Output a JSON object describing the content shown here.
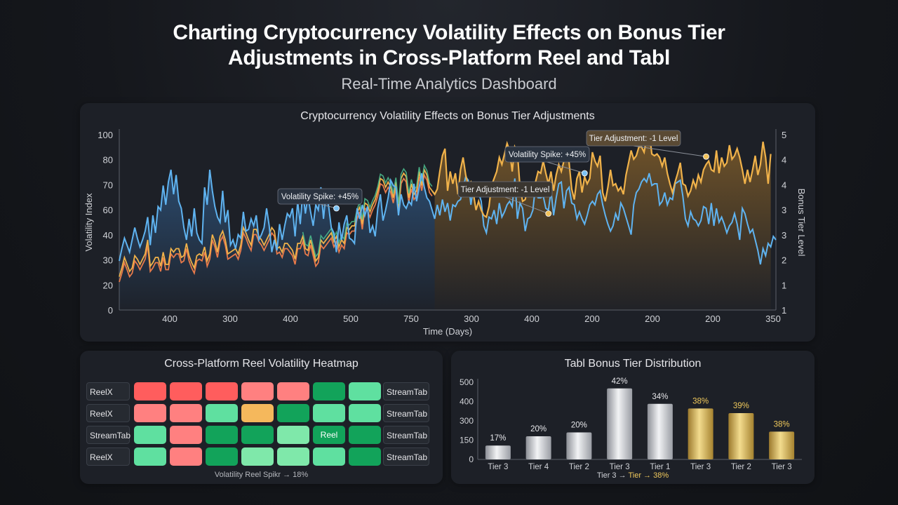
{
  "header": {
    "title_line1": "Charting Cryptocurrency Volatility Effects on Bonus Tier",
    "title_line2": "Adjustments in Cross-Platform Reel and Tabl",
    "subtitle": "Real-Time Analytics Dashboard"
  },
  "colors": {
    "volatility": "#5fb3f0",
    "tier": "#f0b24a",
    "tier_secondary": "#e87a4a",
    "green_line": "#4cbf8f",
    "heat_high": "#ff5d5d",
    "heat_med_high": "#ff8080",
    "heat_amber": "#f5b85c",
    "heat_light_green": "#5fe0a0",
    "heat_green": "#12a35a",
    "heat_pale_green": "#7fe8aa"
  },
  "chart_data": [
    {
      "type": "line",
      "title": "Cryptocurrency Volatility Effects on Bonus Tier Adjustments",
      "xlabel": "Time (Days)",
      "ylabel": "Volatility Index",
      "y2label": "Bonus Tier Level",
      "x_tick_labels": [
        "400",
        "300",
        "400",
        "500",
        "750",
        "300",
        "400",
        "200",
        "200",
        "200",
        "350"
      ],
      "y_ticks": [
        "100",
        "80",
        "70",
        "60",
        "40",
        "30",
        "20",
        "0"
      ],
      "y2_ticks": [
        "5",
        "4",
        "4",
        "3",
        "3",
        "2",
        "1",
        "1"
      ],
      "ylim": [
        0,
        100
      ],
      "y2lim": [
        1,
        5
      ],
      "grid": false,
      "annotations": [
        {
          "text": "Volatility Spike: +45%",
          "x": 84,
          "y": 58
        },
        {
          "text": "Tier Adjustment: -1 Level",
          "x": 166,
          "y": 3.2
        },
        {
          "text": "Volatility Spike: +45%",
          "x": 180,
          "y": 78
        },
        {
          "text": "Tier Adjustment: -1 Level",
          "x": 227,
          "y": 4.5
        }
      ],
      "series": [
        {
          "values": [
            28,
            35,
            41,
            37,
            33,
            40,
            47,
            41,
            36,
            40,
            45,
            53,
            37,
            54,
            44,
            59,
            57,
            71,
            60,
            73,
            80,
            66,
            77,
            62,
            58,
            47,
            40,
            52,
            42,
            58,
            44,
            40,
            38,
            70,
            60,
            80,
            68,
            59,
            53,
            50,
            68,
            50,
            57,
            37,
            40,
            35,
            43,
            41,
            56,
            45,
            46,
            52,
            48,
            54,
            40,
            43,
            47,
            58,
            48,
            33,
            40,
            34,
            49,
            40,
            48,
            55,
            53,
            58,
            42,
            62,
            49,
            68,
            55,
            65,
            56,
            48,
            60,
            57,
            70,
            52,
            67,
            59,
            47,
            44,
            33,
            50,
            40,
            49,
            54,
            41,
            40,
            38,
            58,
            52,
            60,
            54,
            59,
            44,
            48,
            42,
            58,
            66,
            51,
            57,
            64,
            74,
            71,
            70,
            54,
            66,
            60,
            58,
            62,
            60,
            72,
            62,
            70,
            78,
            70,
            64,
            62,
            57,
            52,
            60,
            54,
            63,
            56,
            61,
            51,
            60,
            59,
            62,
            63,
            69,
            76,
            74,
            60,
            70,
            68,
            67,
            62,
            48,
            44,
            53,
            52,
            57,
            49,
            61,
            53,
            56,
            60,
            62,
            59,
            75,
            52,
            61,
            58,
            45,
            52,
            53,
            57,
            71,
            64,
            64,
            65,
            58,
            57,
            68,
            54,
            64,
            72,
            73,
            58,
            68,
            70,
            61,
            60,
            52,
            56,
            52,
            49,
            54,
            60,
            62,
            60,
            66,
            68,
            60,
            54,
            49,
            45,
            48,
            55,
            51,
            61,
            58,
            53,
            48,
            43,
            60,
            67,
            69,
            73,
            75,
            73,
            78,
            71,
            72,
            72,
            60,
            62,
            67,
            60,
            64,
            63,
            72,
            73,
            74,
            65,
            52,
            48,
            56,
            52,
            51,
            48,
            51,
            59,
            58,
            49,
            61,
            48,
            58,
            50,
            53,
            49,
            44,
            48,
            50,
            55,
            49,
            40,
            58,
            55,
            49,
            44,
            46,
            40,
            34,
            26,
            35,
            31,
            38,
            36,
            42,
            40
          ]
        },
        {
          "values": [
            19,
            24,
            30,
            26,
            22,
            24,
            31,
            29,
            26,
            29,
            32,
            40,
            25,
            27,
            30,
            30,
            25,
            33,
            26,
            26,
            35,
            33,
            35,
            35,
            30,
            31,
            38,
            31,
            27,
            24,
            31,
            32,
            31,
            36,
            28,
            32,
            43,
            39,
            33,
            42,
            45,
            40,
            32,
            33,
            34,
            35,
            32,
            37,
            47,
            44,
            40,
            37,
            46,
            46,
            42,
            40,
            37,
            40,
            43,
            47,
            45,
            35,
            36,
            33,
            38,
            38,
            36,
            34,
            29,
            38,
            38,
            42,
            35,
            34,
            40,
            34,
            28,
            30,
            40,
            38,
            40,
            42,
            44,
            39,
            42,
            36,
            40,
            38,
            47,
            46,
            48,
            48,
            55,
            59,
            49,
            61,
            60,
            56,
            60,
            63,
            68,
            75,
            74,
            70,
            73,
            70,
            64,
            73,
            58,
            75,
            78,
            76,
            64,
            72,
            66,
            68,
            79,
            71,
            80,
            77,
            70,
            68,
            66,
            69,
            79,
            88,
            92,
            68,
            79,
            72,
            78,
            66,
            80,
            87,
            77,
            71,
            73,
            66,
            57,
            62,
            57,
            54,
            53,
            59,
            71,
            75,
            79,
            87,
            83,
            89,
            95,
            91,
            79,
            93,
            90,
            70,
            62,
            63,
            70,
            67,
            72,
            73,
            79,
            78,
            85,
            78,
            72,
            79,
            68,
            77,
            83,
            79,
            85,
            91,
            84,
            69,
            63,
            75,
            79,
            67,
            76,
            72,
            75,
            90,
            85,
            82,
            88,
            67,
            62,
            70,
            80,
            71,
            72,
            68,
            70,
            66,
            77,
            84,
            91,
            86,
            88,
            93,
            93,
            90,
            98,
            102,
            89,
            88,
            89,
            87,
            82,
            87,
            78,
            72,
            67,
            73,
            78,
            84,
            72,
            71,
            65,
            68,
            74,
            70,
            77,
            73,
            80,
            83,
            85,
            80,
            79,
            91,
            78,
            87,
            82,
            84,
            94,
            86,
            88,
            92,
            87,
            80,
            72,
            80,
            73,
            80,
            88,
            77,
            83,
            96,
            87,
            72,
            89
          ]
        }
      ]
    },
    {
      "type": "heatmap",
      "title": "Cross-Platform Reel Volatility Heatmap",
      "row_labels_left": [
        "ReelX",
        "ReelX",
        "StreamTab",
        "ReelX"
      ],
      "row_labels_right": [
        "StreamTab",
        "StreamTab",
        "StreamTab",
        "StreamTab"
      ],
      "cells": [
        [
          "high",
          "high",
          "high",
          "med_high",
          "med_high",
          "green",
          "light_green"
        ],
        [
          "med_high",
          "med_high",
          "light_green",
          "amber",
          "green",
          "light_green",
          "light_green"
        ],
        [
          "light_green",
          "med_high",
          "green",
          "green",
          "pale_green",
          "green",
          "green"
        ],
        [
          "light_green",
          "med_high",
          "green",
          "pale_green",
          "pale_green",
          "light_green",
          "green"
        ]
      ],
      "cell_text": [
        [
          "",
          "",
          "",
          "",
          "",
          "",
          ""
        ],
        [
          "",
          "",
          "",
          "",
          "",
          "",
          ""
        ],
        [
          "",
          "",
          "",
          "",
          "",
          "Reel",
          ""
        ],
        [
          "",
          "",
          "",
          "",
          "",
          "",
          ""
        ]
      ],
      "caption": "Volatility Reel Spikr → 18%"
    },
    {
      "type": "bar",
      "title": "Tabl Bonus Tier Distribution",
      "categories": [
        "Tier 3",
        "Tier 4",
        "Tier 2",
        "Tier 3",
        "Tier 1",
        "Tier 3",
        "Tier 2",
        "Tier 3"
      ],
      "values": [
        90,
        150,
        175,
        460,
        360,
        330,
        300,
        180
      ],
      "labels": [
        "17%",
        "20%",
        "20%",
        "42%",
        "34%",
        "38%",
        "39%",
        "38%"
      ],
      "highlight": [
        false,
        false,
        false,
        false,
        false,
        true,
        true,
        true
      ],
      "y_ticks": [
        "500",
        "400",
        "300",
        "150",
        "0"
      ],
      "ylim": [
        0,
        500
      ],
      "caption_a": "Tier 3 → ",
      "caption_b": "Tier → 38%"
    }
  ]
}
